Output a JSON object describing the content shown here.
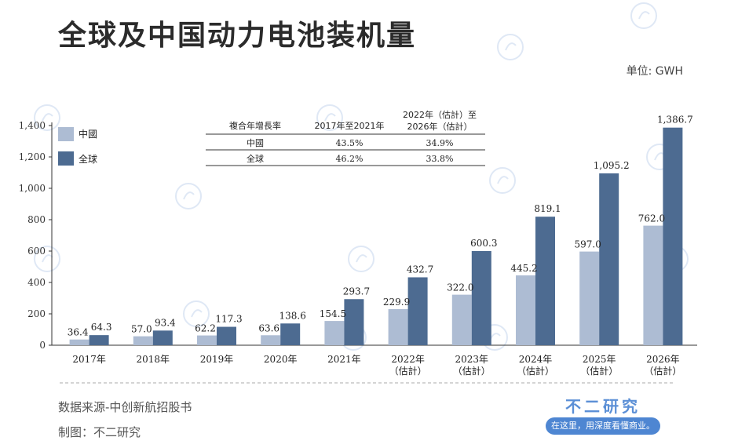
{
  "title": "全球及中国动力电池装机量",
  "unit_label": "单位: GWH",
  "source": "数据来源-中创新航招股书",
  "credit": "制图：不二研究",
  "brand": {
    "name": "不二研究",
    "slogan": "在这里，用深度看懂商业。"
  },
  "colors": {
    "china": "#adbcd3",
    "global": "#4d6b91"
  },
  "cagr_table": {
    "header": [
      "複合年增長率",
      "2017年至2021年",
      "2022年（估計）至2026年（估計）"
    ],
    "rows": [
      {
        "label": "中國",
        "v1": "43.5%",
        "v2": "34.9%"
      },
      {
        "label": "全球",
        "v1": "46.2%",
        "v2": "33.8%"
      }
    ]
  },
  "chart_data": {
    "type": "bar",
    "categories": [
      "2017年",
      "2018年",
      "2019年",
      "2020年",
      "2021年",
      "2022年（估計）",
      "2023年（估計）",
      "2024年（估計）",
      "2025年（估計）",
      "2026年（估計）"
    ],
    "category_lines": [
      [
        "2017年"
      ],
      [
        "2018年"
      ],
      [
        "2019年"
      ],
      [
        "2020年"
      ],
      [
        "2021年"
      ],
      [
        "2022年",
        "（估計）"
      ],
      [
        "2023年",
        "（估計）"
      ],
      [
        "2024年",
        "（估計）"
      ],
      [
        "2025年",
        "（估計）"
      ],
      [
        "2026年",
        "（估計）"
      ]
    ],
    "series": [
      {
        "name": "中國",
        "values": [
          36.4,
          57.0,
          62.2,
          63.6,
          154.5,
          229.9,
          322.0,
          445.2,
          597.0,
          762.0
        ],
        "labels": [
          "36.4",
          "57.0",
          "62.2",
          "63.6",
          "154.5",
          "229.9",
          "322.0",
          "445.2",
          "597.0",
          "762.0"
        ]
      },
      {
        "name": "全球",
        "values": [
          64.3,
          93.4,
          117.3,
          138.6,
          293.7,
          432.7,
          600.3,
          819.1,
          1095.2,
          1386.7
        ],
        "labels": [
          "64.3",
          "93.4",
          "117.3",
          "138.6",
          "293.7",
          "432.7",
          "600.3",
          "819.1",
          "1,095.2",
          "1,386.7"
        ]
      }
    ],
    "yticks": [
      "0",
      "200",
      "400",
      "600",
      "800",
      "1,000",
      "1,200",
      "1,400"
    ],
    "ylim": [
      0,
      1400
    ],
    "grid": false,
    "legend": "top-left"
  }
}
